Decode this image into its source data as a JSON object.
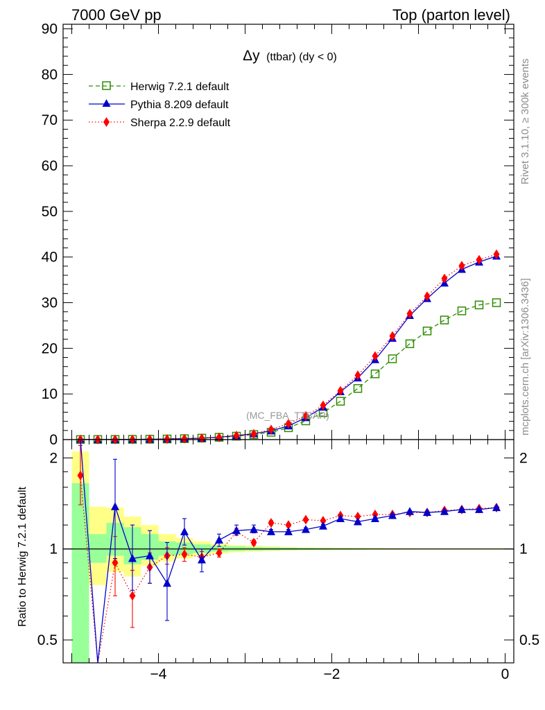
{
  "header": {
    "left": "7000 GeV pp",
    "right": "Top (parton level)"
  },
  "side_labels": {
    "top": "Rivet 3.1.10, ≥ 300k events",
    "bottom": "mcplots.cern.ch [arXiv:1306.3436]"
  },
  "plot_title": {
    "main": "Δy",
    "suffix": "(ttbar) (dy < 0)"
  },
  "watermark": "(MC_FBA_TTBAR)",
  "colors": {
    "herwig": "#2e8b00",
    "pythia": "#0000cc",
    "sherpa": "#ff0000",
    "band_inner": "#99ff99",
    "band_outer": "#ffff88"
  },
  "chart_data": [
    {
      "type": "line",
      "title": "Δy (ttbar) (dy < 0)",
      "xlabel": "",
      "ylabel": "",
      "xlim": [
        -5.1,
        0.1
      ],
      "ylim": [
        0,
        91
      ],
      "yticks": [
        0,
        10,
        20,
        30,
        40,
        50,
        60,
        70,
        80,
        90
      ],
      "x": [
        -4.9,
        -4.7,
        -4.5,
        -4.3,
        -4.1,
        -3.9,
        -3.7,
        -3.5,
        -3.3,
        -3.1,
        -2.9,
        -2.7,
        -2.5,
        -2.3,
        -2.1,
        -1.9,
        -1.7,
        -1.5,
        -1.3,
        -1.1,
        -0.9,
        -0.7,
        -0.5,
        -0.3,
        -0.1
      ],
      "series": [
        {
          "name": "Herwig 7.2.1 default",
          "marker": "open-square",
          "style": "dashed",
          "values": [
            0.01,
            0.02,
            0.03,
            0.05,
            0.08,
            0.13,
            0.2,
            0.32,
            0.5,
            0.75,
            1.1,
            1.6,
            2.6,
            4.1,
            5.9,
            8.4,
            11.2,
            14.4,
            17.7,
            21.0,
            23.8,
            26.2,
            28.2,
            29.5,
            30.0
          ]
        },
        {
          "name": "Pythia 8.209 default",
          "marker": "filled-triangle",
          "style": "solid",
          "values": [
            0.06,
            0.01,
            0.04,
            0.05,
            0.08,
            0.14,
            0.22,
            0.3,
            0.55,
            0.87,
            1.3,
            1.9,
            3.0,
            4.8,
            7.1,
            10.5,
            13.5,
            17.5,
            22.2,
            27.2,
            30.9,
            34.3,
            37.3,
            38.9,
            40.2
          ]
        },
        {
          "name": "Sherpa 2.2.9 default",
          "marker": "filled-diamond",
          "style": "dotted",
          "values": [
            0.02,
            0.01,
            0.03,
            0.04,
            0.07,
            0.12,
            0.19,
            0.3,
            0.48,
            0.87,
            1.25,
            2.2,
            3.5,
            5.2,
            7.5,
            10.7,
            14.1,
            18.3,
            22.7,
            27.6,
            31.4,
            35.3,
            38.1,
            39.4,
            40.6
          ]
        }
      ]
    },
    {
      "type": "line",
      "title": "",
      "xlabel": "",
      "ylabel": "Ratio to Herwig 7.2.1 default",
      "xlim": [
        -5.1,
        0.1
      ],
      "ylim": [
        0.42,
        2.3
      ],
      "yscale": "log",
      "yticks": [
        0.5,
        1,
        2
      ],
      "xticks": [
        -4,
        -2,
        0
      ],
      "x": [
        -4.9,
        -4.7,
        -4.5,
        -4.3,
        -4.1,
        -3.9,
        -3.7,
        -3.5,
        -3.3,
        -3.1,
        -2.9,
        -2.7,
        -2.5,
        -2.3,
        -2.1,
        -1.9,
        -1.7,
        -1.5,
        -1.3,
        -1.1,
        -0.9,
        -0.7,
        -0.5,
        -0.3,
        -0.1
      ],
      "bands": {
        "inner_low": [
          0.39,
          0.9,
          0.95,
          0.89,
          0.92,
          0.95,
          0.96,
          0.97,
          0.98,
          0.985,
          0.988,
          0.99,
          0.992,
          0.993,
          0.994,
          0.995,
          0.995,
          0.996,
          0.996,
          0.997,
          0.997,
          0.997,
          0.997,
          0.997,
          0.997
        ],
        "inner_high": [
          1.65,
          1.12,
          1.22,
          1.18,
          1.12,
          1.06,
          1.05,
          1.035,
          1.025,
          1.02,
          1.015,
          1.012,
          1.01,
          1.008,
          1.007,
          1.006,
          1.005,
          1.005,
          1.004,
          1.004,
          1.003,
          1.003,
          1.003,
          1.003,
          1.003
        ],
        "outer_low": [
          0.39,
          0.76,
          0.84,
          0.81,
          0.88,
          0.91,
          0.93,
          0.95,
          0.965,
          0.975,
          0.98,
          0.985,
          0.987,
          0.99,
          0.991,
          0.992,
          0.993,
          0.994,
          0.994,
          0.995,
          0.995,
          0.995,
          0.995,
          0.995,
          0.995
        ],
        "outer_high": [
          2.1,
          1.38,
          1.37,
          1.28,
          1.2,
          1.12,
          1.09,
          1.06,
          1.04,
          1.03,
          1.025,
          1.02,
          1.015,
          1.012,
          1.01,
          1.009,
          1.008,
          1.007,
          1.006,
          1.006,
          1.005,
          1.005,
          1.005,
          1.005,
          1.005
        ]
      },
      "series": [
        {
          "name": "Pythia 8.209 default",
          "values": [
            2.5,
            0.37,
            1.38,
            0.93,
            0.95,
            0.77,
            1.14,
            0.92,
            1.07,
            1.15,
            1.16,
            1.14,
            1.14,
            1.16,
            1.19,
            1.26,
            1.23,
            1.26,
            1.29,
            1.33,
            1.32,
            1.33,
            1.35,
            1.35,
            1.37
          ],
          "err_low": [
            0,
            0,
            0.45,
            0.2,
            0.18,
            0.19,
            0.11,
            0.08,
            0.05,
            0.04,
            0.03,
            0.02,
            0.02,
            0.015,
            0.015,
            0.01,
            0.01,
            0.01,
            0.01,
            0.01,
            0.01,
            0.01,
            0.01,
            0.01,
            0.01
          ],
          "err_high": [
            0,
            0,
            0.6,
            0.27,
            0.2,
            0.28,
            0.12,
            0.08,
            0.05,
            0.05,
            0.04,
            0.02,
            0.02,
            0.015,
            0.015,
            0.01,
            0.01,
            0.01,
            0.01,
            0.01,
            0.01,
            0.01,
            0.01,
            0.01,
            0.01
          ]
        },
        {
          "name": "Sherpa 2.2.9 default",
          "values": [
            1.75,
            0.4,
            0.9,
            0.7,
            0.87,
            0.95,
            0.96,
            0.94,
            0.97,
            1.14,
            1.05,
            1.22,
            1.2,
            1.25,
            1.24,
            1.29,
            1.28,
            1.3,
            1.3,
            1.32,
            1.32,
            1.34,
            1.35,
            1.36,
            1.37
          ],
          "err_low": [
            0.35,
            0,
            0.2,
            0.15,
            0.1,
            0.06,
            0.05,
            0.04,
            0.03,
            0.03,
            0.02,
            0.02,
            0.015,
            0.01,
            0.01,
            0.01,
            0.01,
            0.01,
            0.01,
            0.01,
            0.01,
            0.01,
            0.01,
            0.01,
            0.01
          ],
          "err_high": [
            0.45,
            0,
            0.2,
            0.15,
            0.1,
            0.06,
            0.05,
            0.04,
            0.03,
            0.03,
            0.02,
            0.02,
            0.015,
            0.01,
            0.01,
            0.01,
            0.01,
            0.01,
            0.01,
            0.01,
            0.01,
            0.01,
            0.01,
            0.01,
            0.01
          ]
        }
      ]
    }
  ]
}
